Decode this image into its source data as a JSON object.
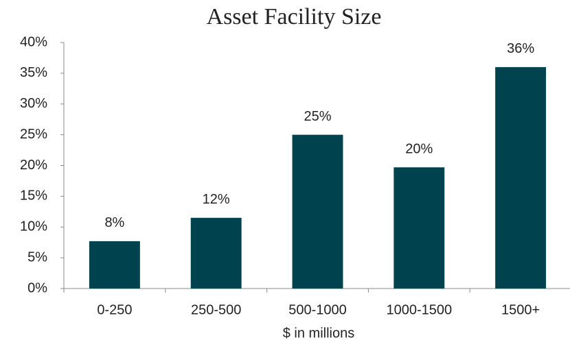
{
  "chart_data": {
    "type": "bar",
    "title": "Asset Facility Size",
    "x_label": "$ in millions",
    "categories": [
      "0-250",
      "250-500",
      "500-1000",
      "1000-1500",
      "1500+"
    ],
    "values": [
      7.7,
      11.5,
      25,
      19.7,
      36
    ],
    "value_labels": [
      "8%",
      "12%",
      "25%",
      "20%",
      "36%"
    ],
    "color": "#00424d",
    "ylim": [
      0,
      40
    ],
    "yticks": [
      {
        "value": 0,
        "label": "0%"
      },
      {
        "value": 5,
        "label": "5%"
      },
      {
        "value": 10,
        "label": "10%"
      },
      {
        "value": 15,
        "label": "15%"
      },
      {
        "value": 20,
        "label": "20%"
      },
      {
        "value": 25,
        "label": "25%"
      },
      {
        "value": 30,
        "label": "30%"
      },
      {
        "value": 35,
        "label": "35%"
      },
      {
        "value": 40,
        "label": "40%"
      }
    ],
    "grid": false
  }
}
